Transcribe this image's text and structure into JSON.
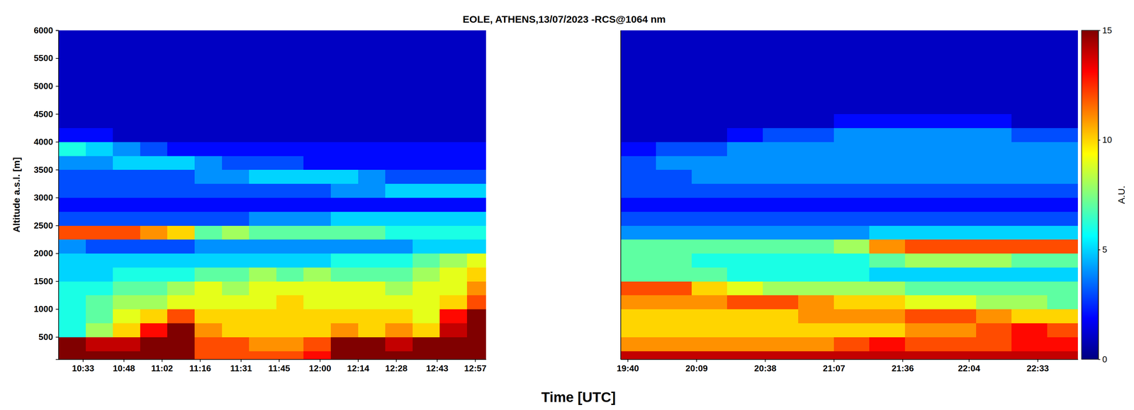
{
  "chart_data": {
    "type": "heatmap",
    "title": "EOLE, ATHENS,13/07/2023 -RCS@1064 nm",
    "xlabel": "Time [UTC]",
    "ylabel": "Altitude a.s.l. [m]",
    "ylim": [
      100,
      6000
    ],
    "yticks": [
      500,
      1000,
      1500,
      2000,
      2500,
      3000,
      3500,
      4000,
      4500,
      5000,
      5500,
      6000
    ],
    "y_edges": [
      100,
      250,
      500,
      750,
      1000,
      1250,
      1500,
      1750,
      2000,
      2250,
      2500,
      2750,
      3000,
      3250,
      3500,
      3750,
      4000,
      4250,
      4500,
      4750,
      5000,
      5250,
      5500,
      5750,
      6000
    ],
    "colorbar": {
      "label": "A.U.",
      "range": [
        0,
        15
      ],
      "ticks": [
        0,
        5,
        10,
        15
      ]
    },
    "panels": [
      {
        "xlim": [
          624,
          781
        ],
        "xticks": [
          {
            "value": 633,
            "label": "10:33"
          },
          {
            "value": 648,
            "label": "10:48"
          },
          {
            "value": 662,
            "label": "11:02"
          },
          {
            "value": 676,
            "label": "11:16"
          },
          {
            "value": 691,
            "label": "11:31"
          },
          {
            "value": 705,
            "label": "11:45"
          },
          {
            "value": 720,
            "label": "12:00"
          },
          {
            "value": 734,
            "label": "12:14"
          },
          {
            "value": 748,
            "label": "12:28"
          },
          {
            "value": 763,
            "label": "12:43"
          },
          {
            "value": 777,
            "label": "12:57"
          }
        ],
        "x_edges": [
          624,
          634,
          644,
          654,
          664,
          674,
          684,
          694,
          704,
          714,
          724,
          734,
          744,
          754,
          764,
          774,
          781
        ],
        "values": [
          [
            15,
            15,
            15,
            15,
            15,
            12,
            12,
            12,
            12,
            13,
            15,
            15,
            15,
            15,
            15,
            15
          ],
          [
            15,
            14,
            14,
            15,
            15,
            12,
            12,
            11,
            11,
            12,
            15,
            15,
            14,
            15,
            15,
            15
          ],
          [
            6,
            8,
            10,
            13,
            15,
            11,
            10,
            10,
            10,
            10,
            11,
            10,
            11,
            10,
            14,
            15
          ],
          [
            6,
            7,
            9,
            10,
            12,
            10,
            10,
            10,
            10,
            10,
            10,
            10,
            10,
            9,
            13,
            15
          ],
          [
            6,
            7,
            8,
            8,
            9,
            9,
            9,
            9,
            10,
            9,
            9,
            9,
            9,
            9,
            10,
            12
          ],
          [
            6,
            6,
            7,
            7,
            8,
            9,
            8,
            9,
            9,
            9,
            9,
            9,
            8,
            9,
            9,
            11
          ],
          [
            5,
            5,
            6,
            6,
            6,
            7,
            7,
            8,
            7,
            8,
            7,
            7,
            7,
            8,
            9,
            10
          ],
          [
            5,
            5,
            5,
            5,
            5,
            5,
            5,
            5,
            5,
            5,
            6,
            6,
            6,
            7,
            8,
            9
          ],
          [
            4,
            3,
            3,
            3,
            3,
            4,
            4,
            4,
            4,
            4,
            4,
            4,
            4,
            5,
            5,
            5
          ],
          [
            12,
            12,
            12,
            11,
            10,
            7,
            8,
            7,
            7,
            7,
            7,
            7,
            6,
            6,
            6,
            6
          ],
          [
            3,
            3,
            3,
            3,
            3,
            3,
            3,
            4,
            4,
            4,
            5,
            5,
            5,
            5,
            5,
            5
          ],
          [
            2,
            2,
            2,
            2,
            2,
            2,
            2,
            2,
            2,
            2,
            2,
            2,
            2,
            2,
            2,
            2
          ],
          [
            3,
            3,
            3,
            3,
            3,
            3,
            3,
            3,
            3,
            3,
            4,
            4,
            5,
            5,
            5,
            5
          ],
          [
            3,
            3,
            3,
            3,
            3,
            4,
            4,
            5,
            5,
            5,
            5,
            4,
            3,
            3,
            3,
            3
          ],
          [
            4,
            4,
            5,
            5,
            5,
            4,
            3,
            3,
            3,
            2,
            2,
            2,
            2,
            2,
            2,
            2
          ],
          [
            6,
            5,
            4,
            3,
            2,
            2,
            2,
            2,
            2,
            2,
            2,
            2,
            2,
            2,
            2,
            2
          ],
          [
            2,
            2,
            1,
            1,
            1,
            1,
            1,
            1,
            1,
            1,
            1,
            1,
            1,
            1,
            1,
            1
          ],
          [
            1,
            1,
            1,
            1,
            1,
            1,
            1,
            1,
            1,
            1,
            1,
            1,
            1,
            1,
            1,
            1
          ],
          [
            1,
            1,
            1,
            1,
            1,
            1,
            1,
            1,
            1,
            1,
            1,
            1,
            1,
            1,
            1,
            1
          ],
          [
            1,
            1,
            1,
            1,
            1,
            1,
            1,
            1,
            1,
            1,
            1,
            1,
            1,
            1,
            1,
            1
          ],
          [
            1,
            1,
            1,
            1,
            1,
            1,
            1,
            1,
            1,
            1,
            1,
            1,
            1,
            1,
            1,
            1
          ],
          [
            1,
            1,
            1,
            1,
            1,
            1,
            1,
            1,
            1,
            1,
            1,
            1,
            1,
            1,
            1,
            1
          ],
          [
            1,
            1,
            1,
            1,
            1,
            1,
            1,
            1,
            1,
            1,
            1,
            1,
            1,
            1,
            1,
            1
          ],
          [
            1,
            1,
            1,
            1,
            1,
            1,
            1,
            1,
            1,
            1,
            1,
            1,
            1,
            1,
            1,
            1
          ]
        ]
      },
      {
        "xlim": [
          1177,
          1370
        ],
        "xticks": [
          {
            "value": 1180,
            "label": "19:40"
          },
          {
            "value": 1209,
            "label": "20:09"
          },
          {
            "value": 1238,
            "label": "20:38"
          },
          {
            "value": 1267,
            "label": "21:07"
          },
          {
            "value": 1296,
            "label": "21:36"
          },
          {
            "value": 1324,
            "label": "22:04"
          },
          {
            "value": 1353,
            "label": "22:33"
          }
        ],
        "x_edges": [
          1177,
          1192,
          1207,
          1222,
          1237,
          1252,
          1267,
          1282,
          1297,
          1312,
          1327,
          1342,
          1357,
          1370
        ],
        "tick_labels": "x",
        "values": [
          [
            14,
            14,
            14,
            14,
            14,
            14,
            14,
            14,
            14,
            14,
            14,
            14,
            14
          ],
          [
            11,
            11,
            11,
            11,
            11,
            11,
            12,
            13,
            12,
            12,
            12,
            13,
            13
          ],
          [
            10,
            10,
            10,
            10,
            10,
            10,
            10,
            10,
            11,
            11,
            12,
            13,
            12
          ],
          [
            10,
            10,
            10,
            10,
            10,
            11,
            11,
            11,
            12,
            12,
            11,
            10,
            10
          ],
          [
            11,
            11,
            11,
            12,
            12,
            11,
            10,
            10,
            9,
            9,
            8,
            8,
            7
          ],
          [
            12,
            12,
            10,
            9,
            8,
            8,
            8,
            8,
            7,
            7,
            7,
            7,
            7
          ],
          [
            7,
            7,
            7,
            6,
            6,
            6,
            6,
            5,
            5,
            5,
            5,
            5,
            5
          ],
          [
            7,
            7,
            6,
            6,
            6,
            6,
            6,
            7,
            8,
            8,
            8,
            7,
            7
          ],
          [
            7,
            7,
            7,
            7,
            7,
            7,
            8,
            11,
            12,
            12,
            12,
            12,
            12
          ],
          [
            4,
            4,
            4,
            4,
            4,
            4,
            4,
            5,
            5,
            5,
            5,
            5,
            5
          ],
          [
            3,
            3,
            3,
            3,
            3,
            3,
            3,
            3,
            3,
            3,
            3,
            3,
            3
          ],
          [
            2,
            2,
            2,
            2,
            2,
            2,
            2,
            2,
            2,
            2,
            2,
            2,
            2
          ],
          [
            3,
            3,
            3,
            3,
            3,
            3,
            3,
            3,
            3,
            3,
            3,
            3,
            3
          ],
          [
            3,
            3,
            4,
            4,
            4,
            4,
            4,
            4,
            4,
            4,
            4,
            4,
            4
          ],
          [
            3,
            4,
            4,
            4,
            4,
            4,
            4,
            4,
            4,
            4,
            4,
            4,
            4
          ],
          [
            2,
            3,
            3,
            4,
            4,
            4,
            4,
            4,
            4,
            4,
            4,
            4,
            4
          ],
          [
            1,
            1,
            1,
            2,
            3,
            3,
            4,
            4,
            4,
            4,
            4,
            3,
            3
          ],
          [
            1,
            1,
            1,
            1,
            1,
            1,
            2,
            2,
            2,
            2,
            2,
            1,
            1
          ],
          [
            1,
            1,
            1,
            1,
            1,
            1,
            1,
            1,
            1,
            1,
            1,
            1,
            1
          ],
          [
            1,
            1,
            1,
            1,
            1,
            1,
            1,
            1,
            1,
            1,
            1,
            1,
            1
          ],
          [
            1,
            1,
            1,
            1,
            1,
            1,
            1,
            1,
            1,
            1,
            1,
            1,
            1
          ],
          [
            1,
            1,
            1,
            1,
            1,
            1,
            1,
            1,
            1,
            1,
            1,
            1,
            1
          ],
          [
            1,
            1,
            1,
            1,
            1,
            1,
            1,
            1,
            1,
            1,
            1,
            1,
            1
          ],
          [
            1,
            1,
            1,
            1,
            1,
            1,
            1,
            1,
            1,
            1,
            1,
            1,
            1
          ]
        ]
      }
    ]
  }
}
